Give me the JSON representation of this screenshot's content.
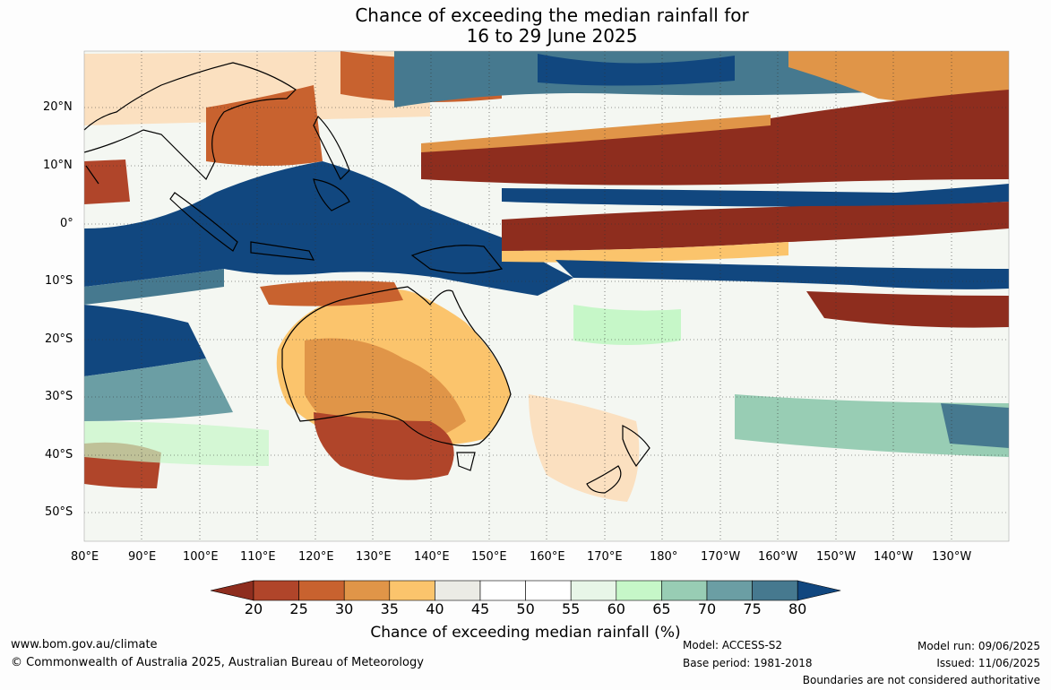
{
  "title_line1": "Chance of exceeding the median rainfall for",
  "title_line2": "16 to 29 June 2025",
  "lon_labels": [
    "80°E",
    "90°E",
    "100°E",
    "110°E",
    "120°E",
    "130°E",
    "140°E",
    "150°E",
    "160°E",
    "170°E",
    "180°",
    "170°W",
    "160°W",
    "150°W",
    "140°W",
    "130°W"
  ],
  "lat_labels": [
    "20°N",
    "10°N",
    "0°",
    "10°S",
    "20°S",
    "30°S",
    "40°S",
    "50°S"
  ],
  "colorbar": {
    "ticks": [
      "20",
      "25",
      "30",
      "35",
      "40",
      "45",
      "50",
      "55",
      "60",
      "65",
      "70",
      "75",
      "80"
    ],
    "colors": [
      "#8e2d1e",
      "#b0452a",
      "#c8622f",
      "#e09548",
      "#fbc46c",
      "#ebebe5",
      "#ffffff",
      "#ffffff",
      "#e8f6e8",
      "#c6f7c8",
      "#98cdb4",
      "#6b9ea4",
      "#46798f",
      "#11477f"
    ],
    "label": "Chance of exceeding median rainfall (%)"
  },
  "footer": {
    "website": "www.bom.gov.au/climate",
    "copyright": "© Commonwealth of Australia 2025, Australian Bureau of Meteorology",
    "model": "Model: ACCESS-S2",
    "base_period": "Base period: 1981-2018",
    "model_run": "Model run: 09/06/2025",
    "issued": "Issued: 11/06/2025",
    "boundaries": "Boundaries are not considered authoritative"
  }
}
